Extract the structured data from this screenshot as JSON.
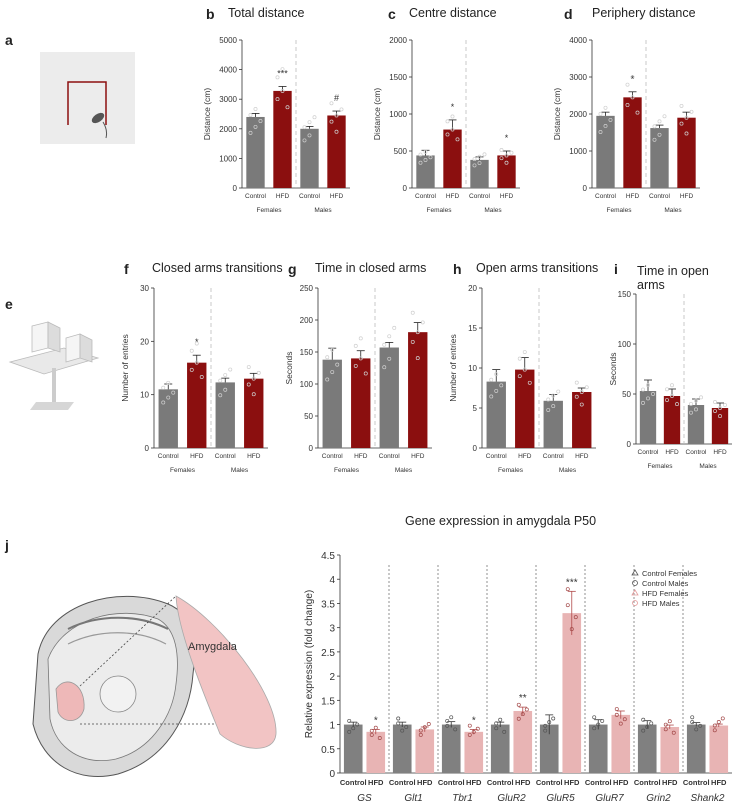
{
  "panel_labels": [
    "a",
    "b",
    "c",
    "d",
    "e",
    "f",
    "g",
    "h",
    "i",
    "j"
  ],
  "colors": {
    "control": "#7a7a7a",
    "hfd": "#8b0f0f",
    "control_j": "#808080",
    "hfd_j": "#e8b4b4",
    "divider": "#bbbbbb"
  },
  "apparatus": {
    "j_region_label": "Amygdala"
  },
  "chart_data": [
    {
      "id": "b",
      "type": "bar",
      "title": "Total distance",
      "ylabel": "Distance (cm)",
      "ylim": [
        0,
        5000
      ],
      "yticks": [
        0,
        1000,
        2000,
        3000,
        4000,
        5000
      ],
      "categories": [
        "Control",
        "HFD",
        "Control",
        "HFD"
      ],
      "groups": [
        "Females",
        "Males"
      ],
      "values": [
        2400,
        3280,
        2000,
        2450
      ],
      "sem": [
        120,
        150,
        80,
        150
      ],
      "sig": [
        "",
        "***",
        "",
        "#"
      ]
    },
    {
      "id": "c",
      "type": "bar",
      "title": "Centre distance",
      "ylabel": "Distance (cm)",
      "ylim": [
        0,
        2000
      ],
      "yticks": [
        0,
        500,
        1000,
        1500,
        2000
      ],
      "categories": [
        "Control",
        "HFD",
        "Control",
        "HFD"
      ],
      "groups": [
        "Females",
        "Males"
      ],
      "values": [
        440,
        790,
        380,
        440
      ],
      "sem": [
        70,
        130,
        40,
        60
      ],
      "sig": [
        "",
        "*",
        "",
        "*"
      ]
    },
    {
      "id": "d",
      "type": "bar",
      "title": "Periphery distance",
      "ylabel": "Distance (cm)",
      "ylim": [
        0,
        4000
      ],
      "yticks": [
        0,
        1000,
        2000,
        3000,
        4000
      ],
      "categories": [
        "Control",
        "HFD",
        "Control",
        "HFD"
      ],
      "groups": [
        "Females",
        "Males"
      ],
      "values": [
        1950,
        2450,
        1620,
        1900
      ],
      "sem": [
        100,
        150,
        80,
        150
      ],
      "sig": [
        "",
        "*",
        "",
        ""
      ]
    },
    {
      "id": "f",
      "type": "bar",
      "title": "Closed arms transitions",
      "ylabel": "Number of entries",
      "ylim": [
        0,
        30
      ],
      "yticks": [
        0,
        10,
        20,
        30
      ],
      "categories": [
        "Control",
        "HFD",
        "Control",
        "HFD"
      ],
      "groups": [
        "Females",
        "Males"
      ],
      "values": [
        11,
        16,
        12.3,
        13
      ],
      "sem": [
        1.0,
        1.4,
        0.8,
        1.0
      ],
      "sig": [
        "",
        "*",
        "",
        ""
      ]
    },
    {
      "id": "g",
      "type": "bar",
      "title": "Time in closed arms",
      "ylabel": "Seconds",
      "ylim": [
        0,
        250
      ],
      "yticks": [
        0,
        50,
        100,
        150,
        200,
        250
      ],
      "categories": [
        "Control",
        "HFD",
        "Control",
        "HFD"
      ],
      "groups": [
        "Females",
        "Males"
      ],
      "values": [
        138,
        140,
        157,
        181
      ],
      "sem": [
        18,
        12,
        8,
        15
      ],
      "sig": [
        "",
        "",
        "",
        ""
      ]
    },
    {
      "id": "h",
      "type": "bar",
      "title": "Open arms transitions",
      "ylabel": "Number of entries",
      "ylim": [
        0,
        20
      ],
      "yticks": [
        0,
        5,
        10,
        15,
        20
      ],
      "categories": [
        "Control",
        "HFD",
        "Control",
        "HFD"
      ],
      "groups": [
        "Females",
        "Males"
      ],
      "values": [
        8.3,
        9.8,
        5.9,
        7.0
      ],
      "sem": [
        1.5,
        1.5,
        0.8,
        0.5
      ],
      "sig": [
        "",
        "",
        "",
        ""
      ]
    },
    {
      "id": "i",
      "type": "bar",
      "title": "Time in open arms",
      "ylabel": "Seconds",
      "ylim": [
        0,
        150
      ],
      "yticks": [
        0,
        50,
        100,
        150
      ],
      "categories": [
        "Control",
        "HFD",
        "Control",
        "HFD"
      ],
      "groups": [
        "Females",
        "Males"
      ],
      "values": [
        53,
        48,
        39,
        36
      ],
      "sem": [
        11,
        7,
        6,
        5
      ],
      "sig": [
        "",
        "",
        "",
        ""
      ]
    },
    {
      "id": "j",
      "type": "bar",
      "title": "Gene expression in amygdala P50",
      "ylabel": "Relative expression (fold change)",
      "ylim": [
        0,
        4.5
      ],
      "yticks": [
        0,
        0.5,
        1,
        1.5,
        2,
        2.5,
        3,
        3.5,
        4,
        4.5
      ],
      "genes": [
        "GS",
        "Glt1",
        "Tbr1",
        "GluR2",
        "GluR5",
        "GluR7",
        "Grin2",
        "Shank2"
      ],
      "bar_labels": [
        "Control",
        "HFD"
      ],
      "series": [
        {
          "name": "Control",
          "values": [
            1.0,
            1.0,
            1.0,
            1.0,
            1.0,
            1.0,
            1.0,
            1.0
          ],
          "sem": [
            0.05,
            0.05,
            0.06,
            0.05,
            0.2,
            0.1,
            0.08,
            0.04
          ]
        },
        {
          "name": "HFD",
          "values": [
            0.85,
            0.9,
            0.85,
            1.28,
            3.3,
            1.2,
            0.95,
            0.98
          ],
          "sem": [
            0.05,
            0.05,
            0.05,
            0.08,
            0.45,
            0.08,
            0.04,
            0.03
          ]
        }
      ],
      "sig": [
        "*",
        "",
        "*",
        "**",
        "***",
        "",
        "",
        ""
      ],
      "legend": [
        "Control Females",
        "Control Males",
        "HFD Females",
        "HFD Males"
      ]
    }
  ]
}
